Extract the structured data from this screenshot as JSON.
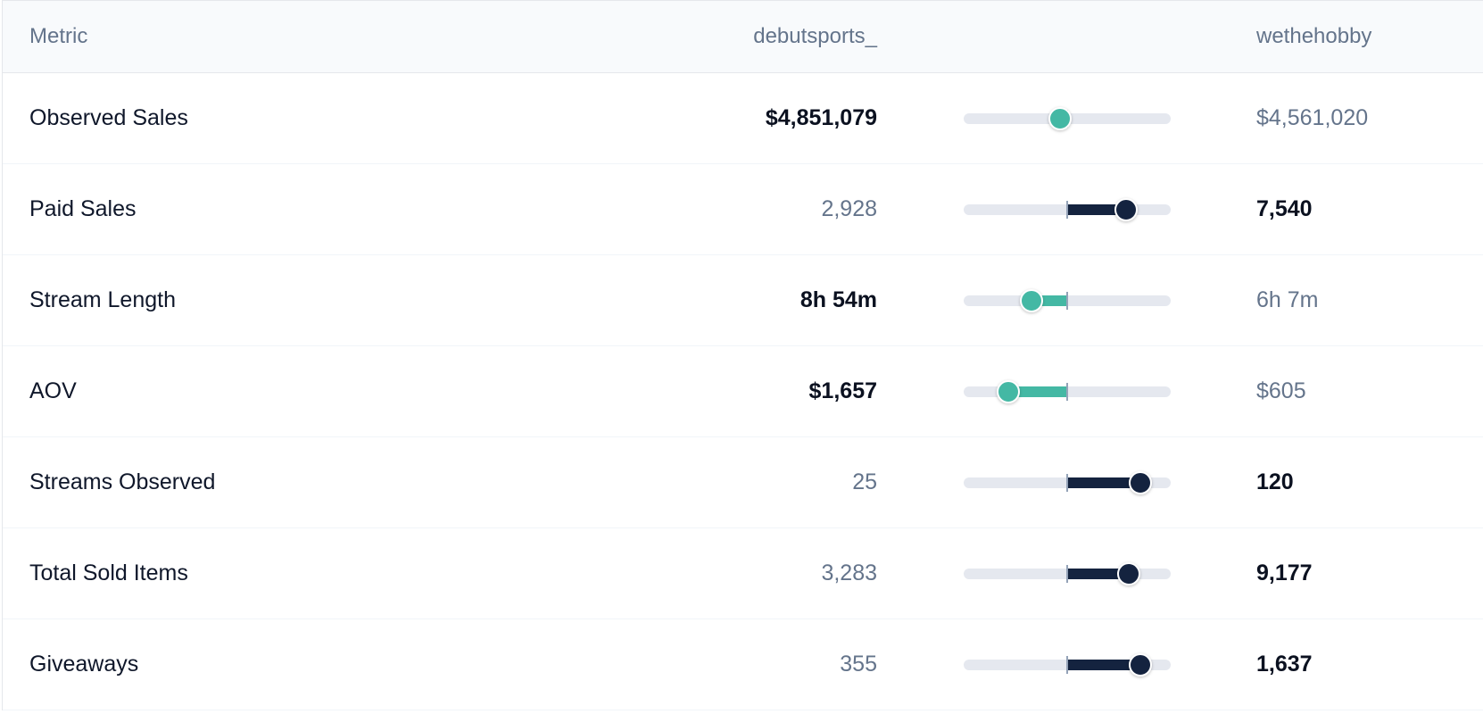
{
  "header": {
    "metric_label": "Metric",
    "left_name": "debutsports_",
    "right_name": "wethehobby"
  },
  "colors": {
    "left_winner": "#44b8a4",
    "right_winner": "#14233f",
    "track": "#e5e8ef"
  },
  "rows": [
    {
      "label": "Observed Sales",
      "left": "$4,851,079",
      "right": "$4,561,020",
      "winner": "left",
      "share": 0.08
    },
    {
      "label": "Paid Sales",
      "left": "2,928",
      "right": "7,540",
      "winner": "right",
      "share": 0.62
    },
    {
      "label": "Stream Length",
      "left": "8h 54m",
      "right": "6h 7m",
      "winner": "left",
      "share": 0.38
    },
    {
      "label": "AOV",
      "left": "$1,657",
      "right": "$605",
      "winner": "left",
      "share": 0.62
    },
    {
      "label": "Streams Observed",
      "left": "25",
      "right": "120",
      "winner": "right",
      "share": 0.77
    },
    {
      "label": "Total Sold Items",
      "left": "3,283",
      "right": "9,177",
      "winner": "right",
      "share": 0.65
    },
    {
      "label": "Giveaways",
      "left": "355",
      "right": "1,637",
      "winner": "right",
      "share": 0.77
    }
  ]
}
